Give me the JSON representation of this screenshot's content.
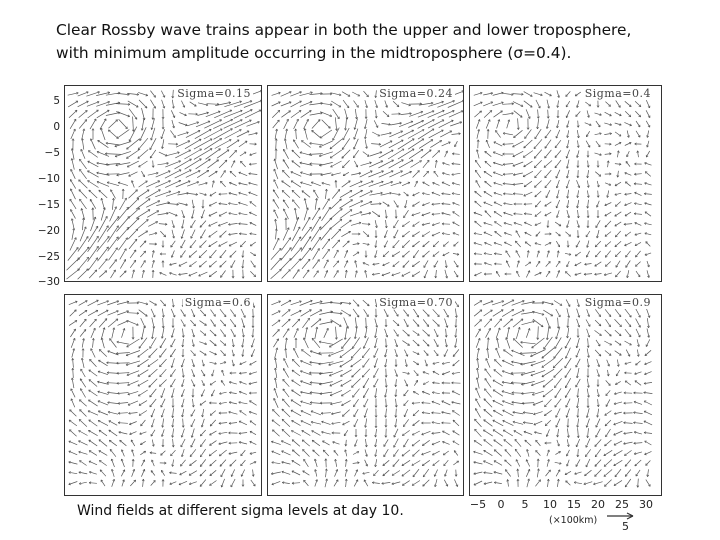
{
  "title_line1": "Clear Rossby wave trains appear in both the upper and lower troposphere,",
  "title_line2": "with minimum amplitude occurring in the midtroposphere (σ=0.4).",
  "caption": "Wind fields at different sigma levels at day 10.",
  "panels": [
    {
      "label": "Sigma=0.15",
      "storm": "upper",
      "strength": 1.0
    },
    {
      "label": "Sigma=0.24",
      "storm": "upper",
      "strength": 0.85
    },
    {
      "label": "Sigma=0.4",
      "storm": "mid",
      "strength": 0.55
    },
    {
      "label": "Sigma=0.6",
      "storm": "lower",
      "strength": 0.8
    },
    {
      "label": "Sigma=0.70",
      "storm": "lower",
      "strength": 0.9
    },
    {
      "label": "Sigma=0.9",
      "storm": "lower",
      "strength": 0.95
    }
  ],
  "y_ticks": [
    "5",
    "0",
    "−5",
    "−10",
    "−15",
    "−20",
    "−25",
    "−30"
  ],
  "x_ticks": [
    "−5",
    "0",
    "5",
    "10",
    "15",
    "20",
    "25",
    "30"
  ],
  "x_unit": "(×100km)",
  "reference_vector": "5",
  "colors": {
    "arrow": "#555555",
    "frame": "#333333"
  }
}
